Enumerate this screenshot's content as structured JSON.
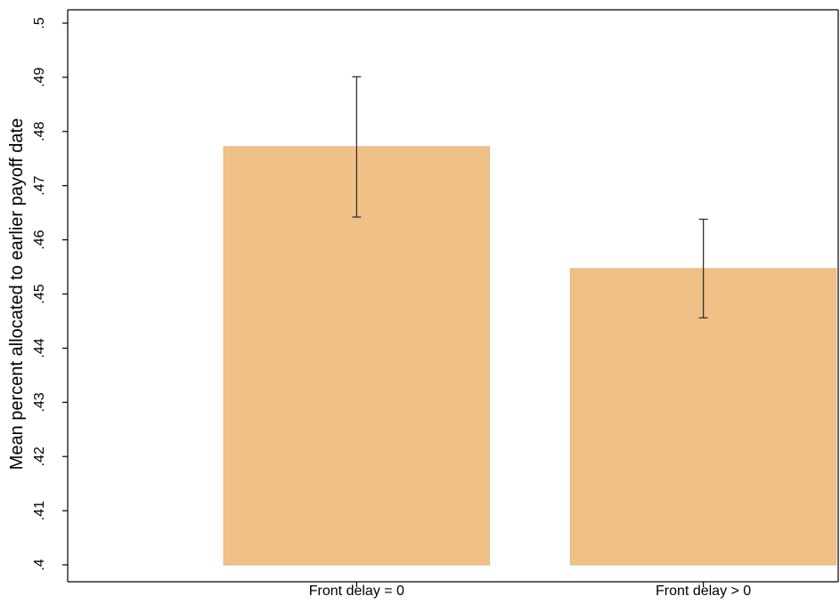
{
  "chart_data": {
    "type": "bar",
    "title": "",
    "xlabel": "",
    "ylabel": "Mean percent allocated to earlier payoff date",
    "categories": [
      "Front delay = 0",
      "Front delay > 0"
    ],
    "values": [
      0.4772,
      0.4547
    ],
    "error_bars": [
      {
        "low": 0.4642,
        "high": 0.4901
      },
      {
        "low": 0.4456,
        "high": 0.4638
      }
    ],
    "ylim": [
      0.4,
      0.5
    ],
    "yticks": [
      0.4,
      0.41,
      0.42,
      0.43,
      0.44,
      0.45,
      0.46,
      0.47,
      0.48,
      0.49,
      0.5
    ],
    "ytick_labels": [
      ".4",
      ".41",
      ".42",
      ".43",
      ".44",
      ".45",
      ".46",
      ".47",
      ".48",
      ".49",
      ".5"
    ],
    "grid": false,
    "colors": {
      "bar_fill": "#f0c187",
      "bar_stroke": "#e8b478",
      "error_bar": "#333333",
      "axis": "#000000"
    }
  }
}
